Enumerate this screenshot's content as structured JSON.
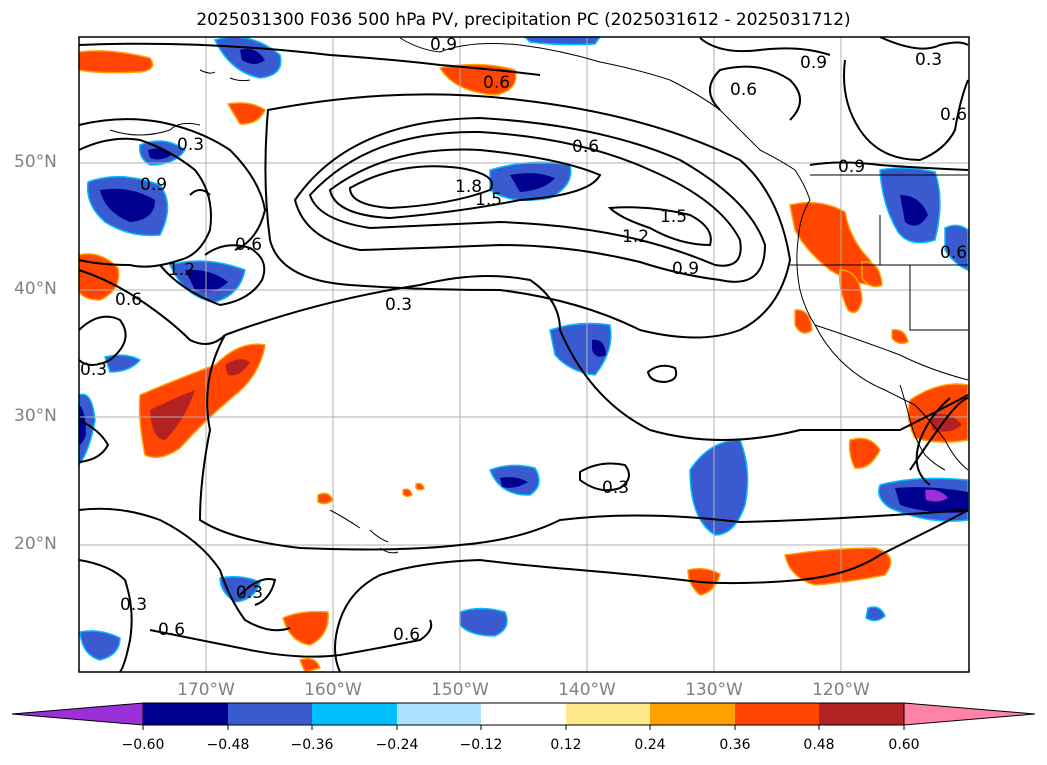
{
  "title": "2025031300 F036 500 hPa PV, precipitation PC (2025031612 - 2025031712)",
  "lon_labels": [
    "170°W",
    "160°W",
    "150°W",
    "140°W",
    "130°W",
    "120°W"
  ],
  "lat_labels": [
    "50°N",
    "40°N",
    "30°N",
    "20°N"
  ],
  "contour_labels": [
    "0.9",
    "0.3",
    "0.6",
    "0.9",
    "0.6",
    "0.3",
    "0.9",
    "0.6",
    "0.6",
    "0.9",
    "0.6",
    "1.8",
    "1.5",
    "1.5",
    "1.2",
    "0.9",
    "0.6",
    "1.2",
    "0.6",
    "0.3",
    "0.3",
    "0.3",
    "0.3",
    "0.6",
    "0.3",
    "0.6"
  ],
  "colorbar": {
    "ticks": [
      "−0.60",
      "−0.48",
      "−0.36",
      "−0.24",
      "−0.12",
      "0.12",
      "0.24",
      "0.36",
      "0.48",
      "0.60"
    ],
    "colors": [
      "#9b30d9",
      "#000090",
      "#3a5bd0",
      "#00bfff",
      "#aee0ff",
      "#ffffff",
      "#ffe88a",
      "#ffa000",
      "#ff4500",
      "#b22222",
      "#ff82a8"
    ]
  }
}
